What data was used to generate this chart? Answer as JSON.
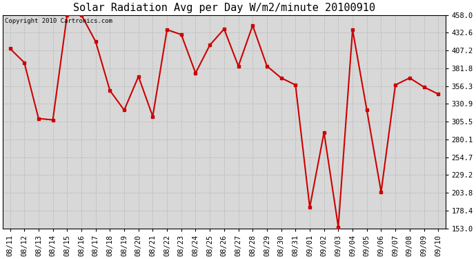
{
  "title": "Solar Radiation Avg per Day W/m2/minute 20100910",
  "copyright": "Copyright 2010 Cartronics.com",
  "dates": [
    "08/11",
    "08/12",
    "08/13",
    "08/14",
    "08/15",
    "08/16",
    "08/17",
    "08/18",
    "08/19",
    "08/20",
    "08/21",
    "08/22",
    "08/23",
    "08/24",
    "08/25",
    "08/26",
    "08/27",
    "08/28",
    "08/29",
    "08/30",
    "08/31",
    "09/01",
    "09/02",
    "09/03",
    "09/04",
    "09/05",
    "09/06",
    "09/07",
    "09/08",
    "09/09",
    "09/10"
  ],
  "values": [
    410,
    390,
    310,
    308,
    458,
    458,
    420,
    350,
    322,
    370,
    313,
    437,
    430,
    375,
    415,
    438,
    385,
    443,
    385,
    368,
    358,
    183,
    290,
    155,
    437,
    322,
    205,
    358,
    368,
    355,
    345
  ],
  "line_color": "#cc0000",
  "marker": "s",
  "marker_size": 3,
  "line_width": 1.5,
  "ylim": [
    153.0,
    458.0
  ],
  "yticks": [
    153.0,
    178.4,
    203.8,
    229.2,
    254.7,
    280.1,
    305.5,
    330.9,
    356.3,
    381.8,
    407.2,
    432.6,
    458.0
  ],
  "background_color": "#ffffff",
  "plot_bg_color": "#d8d8d8",
  "grid_color": "#bbbbbb",
  "title_fontsize": 11,
  "tick_fontsize": 7.5,
  "copyright_fontsize": 6.5
}
